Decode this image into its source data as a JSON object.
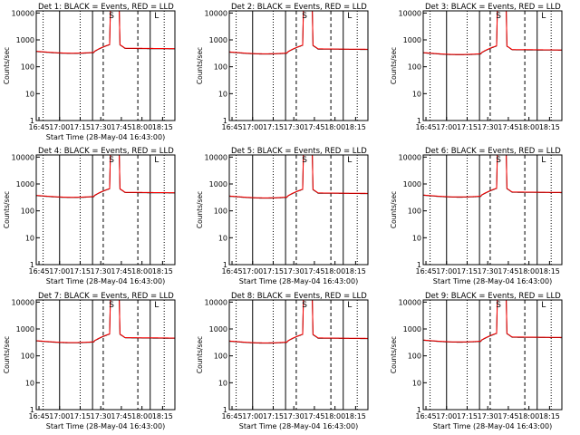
{
  "chart_data": [
    {
      "type": "line",
      "title": "Det 1: BLACK = Events, RED = LLD",
      "xlabel": "Start Time (28-May-04 16:43:00)",
      "ylabel": "Counts/sec",
      "y_scale": "log",
      "ylim": [
        1,
        12000
      ],
      "x_ticks": [
        "16:45",
        "17:00",
        "17:15",
        "17:30",
        "17:45",
        "18:00",
        "18:15"
      ],
      "y_ticks": [
        "1",
        "10",
        "100",
        "1000",
        "10000"
      ],
      "annotations": [
        "S",
        "L"
      ],
      "series": [
        {
          "color": "#000000"
        },
        {
          "color": "#ff0000"
        }
      ]
    },
    {
      "type": "line",
      "title": "Det 2: BLACK = Events, RED = LLD",
      "xlabel": "",
      "ylabel": "Counts/sec",
      "y_scale": "log",
      "ylim": [
        1,
        12000
      ],
      "x_ticks": [
        "16:45",
        "17:00",
        "17:15",
        "17:30",
        "17:45",
        "18:00",
        "18:15"
      ],
      "y_ticks": [
        "1",
        "10",
        "100",
        "1000",
        "10000"
      ],
      "annotations": [
        "S",
        "L"
      ],
      "series": [
        {
          "color": "#000000"
        },
        {
          "color": "#ff0000"
        }
      ]
    },
    {
      "type": "line",
      "title": "Det 3: BLACK = Events, RED = LLD",
      "xlabel": "",
      "ylabel": "Counts/sec",
      "y_scale": "log",
      "ylim": [
        1,
        12000
      ],
      "x_ticks": [
        "16:45",
        "17:00",
        "17:15",
        "17:30",
        "17:45",
        "18:00",
        "18:15"
      ],
      "y_ticks": [
        "1",
        "10",
        "100",
        "1000",
        "10000"
      ],
      "annotations": [
        "S",
        "L"
      ],
      "series": [
        {
          "color": "#000000"
        },
        {
          "color": "#ff0000"
        }
      ]
    },
    {
      "type": "line",
      "title": "Det 4: BLACK = Events, RED = LLD",
      "xlabel": "Start Time (28-May-04 16:43:00)",
      "ylabel": "Counts/sec",
      "y_scale": "log",
      "ylim": [
        1,
        12000
      ],
      "x_ticks": [
        "16:45",
        "17:00",
        "17:15",
        "17:30",
        "17:45",
        "18:00",
        "18:15"
      ],
      "y_ticks": [
        "1",
        "10",
        "100",
        "1000",
        "10000"
      ],
      "annotations": [
        "S",
        "L"
      ],
      "series": [
        {
          "color": "#000000"
        },
        {
          "color": "#ff0000"
        }
      ]
    },
    {
      "type": "line",
      "title": "Det 5: BLACK = Events, RED = LLD",
      "xlabel": "Start Time (28-May-04 16:43:00)",
      "ylabel": "Counts/sec",
      "y_scale": "log",
      "ylim": [
        1,
        12000
      ],
      "x_ticks": [
        "16:45",
        "17:00",
        "17:15",
        "17:30",
        "17:45",
        "18:00",
        "18:15"
      ],
      "y_ticks": [
        "1",
        "10",
        "100",
        "1000",
        "10000"
      ],
      "annotations": [
        "S",
        "L"
      ],
      "series": [
        {
          "color": "#000000"
        },
        {
          "color": "#ff0000"
        }
      ]
    },
    {
      "type": "line",
      "title": "Det 6: BLACK = Events, RED = LLD",
      "xlabel": "Start Time (28-May-04 16:43:00)",
      "ylabel": "Counts/sec",
      "y_scale": "log",
      "ylim": [
        1,
        12000
      ],
      "x_ticks": [
        "16:45",
        "17:00",
        "17:15",
        "17:30",
        "17:45",
        "18:00",
        "18:15"
      ],
      "y_ticks": [
        "1",
        "10",
        "100",
        "1000",
        "10000"
      ],
      "annotations": [
        "S",
        "L"
      ],
      "series": [
        {
          "color": "#000000"
        },
        {
          "color": "#ff0000"
        }
      ]
    },
    {
      "type": "line",
      "title": "Det 7: BLACK = Events, RED = LLD",
      "xlabel": "Start Time (28-May-04 16:43:00)",
      "ylabel": "Counts/sec",
      "y_scale": "log",
      "ylim": [
        1,
        12000
      ],
      "x_ticks": [
        "16:45",
        "17:00",
        "17:15",
        "17:30",
        "17:45",
        "18:00",
        "18:15"
      ],
      "y_ticks": [
        "1",
        "10",
        "100",
        "1000",
        "10000"
      ],
      "annotations": [
        "S",
        "L"
      ],
      "series": [
        {
          "color": "#000000"
        },
        {
          "color": "#ff0000"
        }
      ]
    },
    {
      "type": "line",
      "title": "Det 8: BLACK = Events, RED = LLD",
      "xlabel": "Start Time (28-May-04 16:43:00)",
      "ylabel": "Counts/sec",
      "y_scale": "log",
      "ylim": [
        1,
        12000
      ],
      "x_ticks": [
        "16:45",
        "17:00",
        "17:15",
        "17:30",
        "17:45",
        "18:00",
        "18:15"
      ],
      "y_ticks": [
        "1",
        "10",
        "100",
        "1000",
        "10000"
      ],
      "annotations": [
        "S",
        "L"
      ],
      "series": [
        {
          "color": "#000000"
        },
        {
          "color": "#ff0000"
        }
      ]
    },
    {
      "type": "line",
      "title": "Det 9: BLACK = Events, RED = LLD",
      "xlabel": "Start Time (28-May-04 16:43:00)",
      "ylabel": "Counts/sec",
      "y_scale": "log",
      "ylim": [
        1,
        12000
      ],
      "x_ticks": [
        "16:45",
        "17:00",
        "17:15",
        "17:30",
        "17:45",
        "18:00",
        "18:15"
      ],
      "y_ticks": [
        "1",
        "10",
        "100",
        "1000",
        "10000"
      ],
      "annotations": [
        "S",
        "L"
      ],
      "series": [
        {
          "color": "#000000"
        },
        {
          "color": "#ff0000"
        }
      ]
    }
  ]
}
